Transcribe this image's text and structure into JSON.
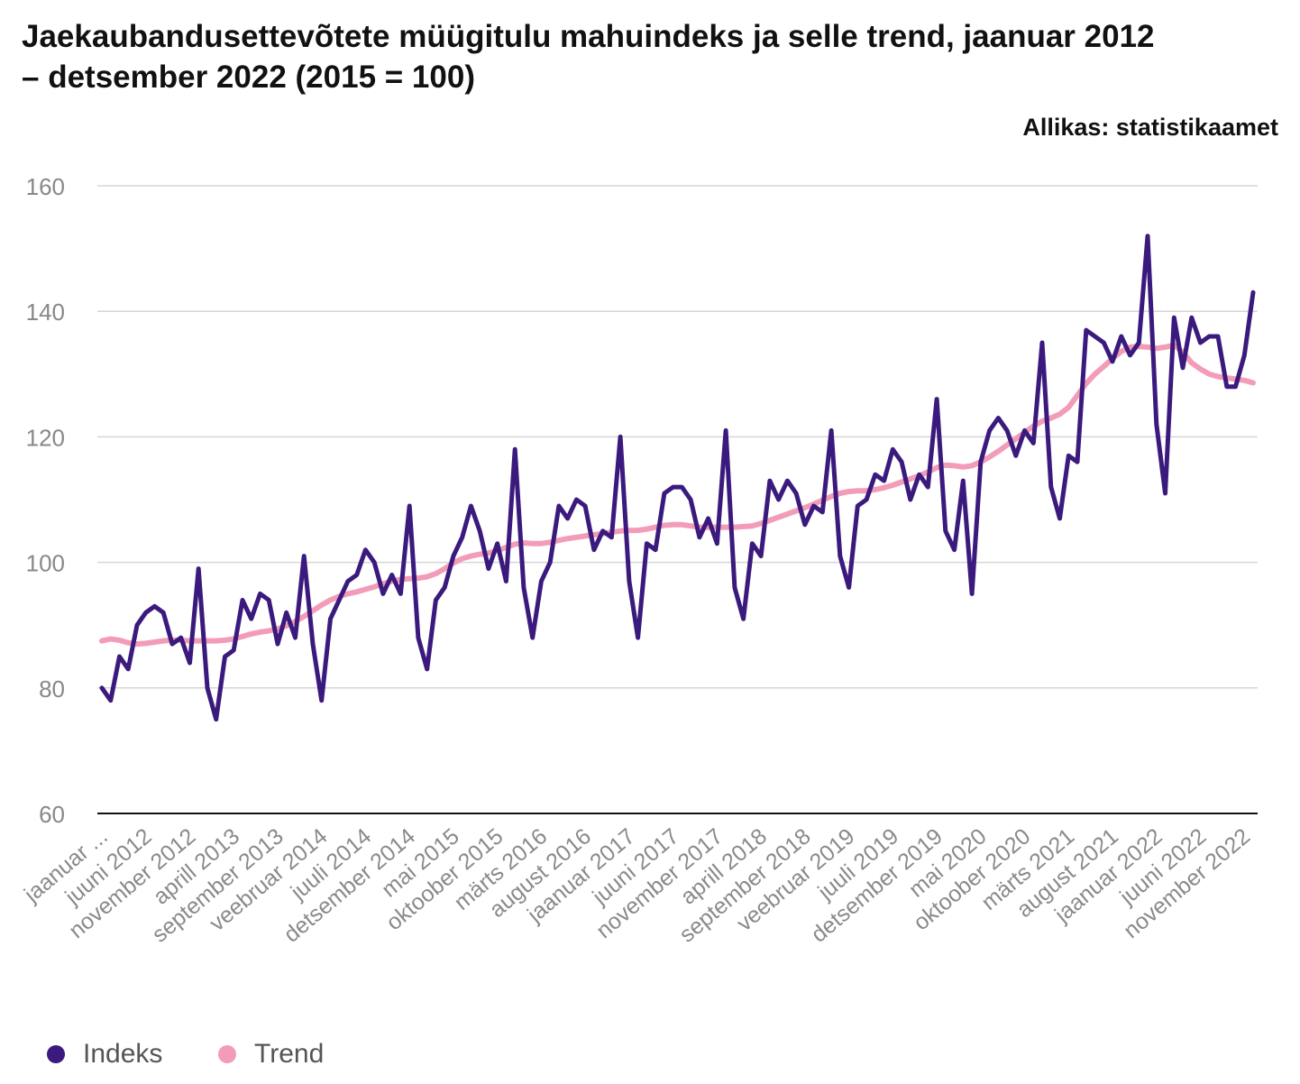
{
  "chart_data": {
    "type": "line",
    "title": "Jaekaubandusettevõtete müügitulu mahuindeks ja selle trend, jaanuar 2012 – detsember 2022 (2015 = 100)",
    "source": "Allikas: statistikaamet",
    "xlabel": "",
    "ylabel": "",
    "ylim": [
      60,
      160
    ],
    "yticks": [
      "60",
      "80",
      "100",
      "120",
      "140",
      "160"
    ],
    "ytick_values": [
      60,
      80,
      100,
      120,
      140,
      160
    ],
    "grid": true,
    "legend_position": "bottom-left",
    "x_tick_labels": [
      "jaanuar ...",
      "juuni 2012",
      "november 2012",
      "aprill 2013",
      "september 2013",
      "veebruar 2014",
      "juuli 2014",
      "detsember 2014",
      "mai 2015",
      "oktoober 2015",
      "märts 2016",
      "august 2016",
      "jaanuar 2017",
      "juuni 2017",
      "november 2017",
      "aprill 2018",
      "september 2018",
      "veebruar 2019",
      "juuli 2019",
      "detsember 2019",
      "mai 2020",
      "oktoober 2020",
      "märts 2021",
      "august 2021",
      "jaanuar 2022",
      "juuni 2022",
      "november 2022"
    ],
    "x_tick_every": 5,
    "n_points": 132,
    "series": [
      {
        "name": "Indeks",
        "color": "#3b1a7e",
        "values": [
          80,
          78,
          85,
          83,
          90,
          92,
          93,
          92,
          87,
          88,
          84,
          99,
          80,
          75,
          85,
          86,
          94,
          91,
          95,
          94,
          87,
          92,
          88,
          101,
          87,
          78,
          91,
          94,
          97,
          98,
          102,
          100,
          95,
          98,
          95,
          109,
          88,
          83,
          94,
          96,
          101,
          104,
          109,
          105,
          99,
          103,
          97,
          118,
          96,
          88,
          97,
          100,
          109,
          107,
          110,
          109,
          102,
          105,
          104,
          120,
          97,
          88,
          103,
          102,
          111,
          112,
          112,
          110,
          104,
          107,
          103,
          121,
          96,
          91,
          103,
          101,
          113,
          110,
          113,
          111,
          106,
          109,
          108,
          121,
          101,
          96,
          109,
          110,
          114,
          113,
          118,
          116,
          110,
          114,
          112,
          126,
          105,
          102,
          113,
          95,
          116,
          121,
          123,
          121,
          117,
          121,
          119,
          135,
          112,
          107,
          117,
          116,
          137,
          136,
          135,
          132,
          136,
          133,
          135,
          152,
          122,
          111,
          139,
          131,
          139,
          135,
          136,
          136,
          128,
          128,
          133,
          143
        ]
      },
      {
        "name": "Trend",
        "color": "#f29cb8",
        "values": [
          87.5,
          87.8,
          87.6,
          87.2,
          87.0,
          87.1,
          87.3,
          87.5,
          87.6,
          87.6,
          87.5,
          87.5,
          87.5,
          87.5,
          87.6,
          87.8,
          88.2,
          88.6,
          88.9,
          89.1,
          89.4,
          89.9,
          90.6,
          91.4,
          92.3,
          93.2,
          94.0,
          94.6,
          95.0,
          95.3,
          95.7,
          96.1,
          96.6,
          97.0,
          97.3,
          97.4,
          97.5,
          97.7,
          98.2,
          99.0,
          99.9,
          100.6,
          101.0,
          101.3,
          101.5,
          101.9,
          102.4,
          102.9,
          103.1,
          103.0,
          103.0,
          103.2,
          103.5,
          103.8,
          104.0,
          104.2,
          104.4,
          104.6,
          104.8,
          105.0,
          105.1,
          105.1,
          105.3,
          105.6,
          105.9,
          106.0,
          106.0,
          105.8,
          105.6,
          105.6,
          105.6,
          105.6,
          105.6,
          105.7,
          105.8,
          106.2,
          106.7,
          107.2,
          107.7,
          108.2,
          108.7,
          109.3,
          109.9,
          110.5,
          111.0,
          111.3,
          111.4,
          111.4,
          111.6,
          111.9,
          112.3,
          112.8,
          113.3,
          113.8,
          114.4,
          115.1,
          115.5,
          115.4,
          115.2,
          115.4,
          116.0,
          116.8,
          117.7,
          118.7,
          119.7,
          120.7,
          121.7,
          122.5,
          123.0,
          123.6,
          124.7,
          126.6,
          128.5,
          130.0,
          131.2,
          132.5,
          133.6,
          134.3,
          134.4,
          134.3,
          134.1,
          134.3,
          134.6,
          133.5,
          131.8,
          130.8,
          130.0,
          129.6,
          129.4,
          129.2,
          129.0,
          128.6
        ]
      }
    ]
  }
}
